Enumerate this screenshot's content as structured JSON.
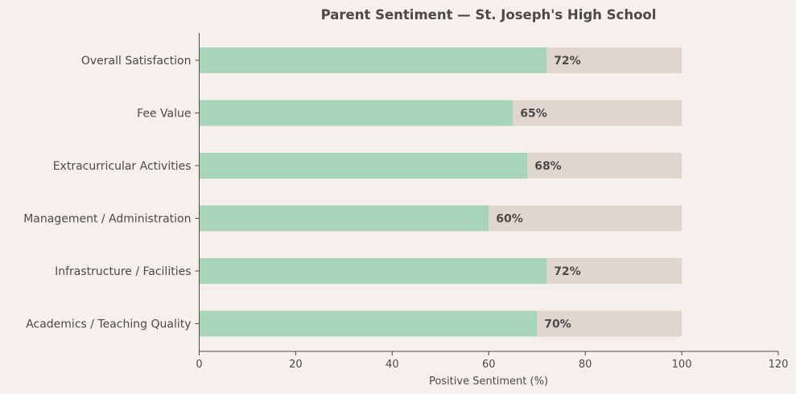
{
  "chart_data": {
    "type": "bar",
    "orientation": "horizontal",
    "title": "Parent Sentiment — St. Joseph's High School",
    "xlabel": "Positive Sentiment (%)",
    "ylabel": "",
    "xlim": [
      0,
      120
    ],
    "x_ticks": [
      "0",
      "20",
      "40",
      "60",
      "80",
      "100",
      "120"
    ],
    "categories": [
      "Overall Satisfaction",
      "Fee Value",
      "Extracurricular Activities",
      "Management / Administration",
      "Infrastructure / Facilities",
      "Academics / Teaching Quality"
    ],
    "values": [
      72,
      65,
      68,
      60,
      72,
      70
    ],
    "value_labels": [
      "72%",
      "65%",
      "68%",
      "60%",
      "72%",
      "70%"
    ],
    "background_bar_value": 100,
    "grid": false,
    "legend": "none",
    "colors": {
      "bar": "#a8d4b9",
      "background_bar": "#e0d6cd",
      "text": "#4a4a4a",
      "axis": "#4a4a4a",
      "page_background": "#f5f0eb"
    }
  }
}
